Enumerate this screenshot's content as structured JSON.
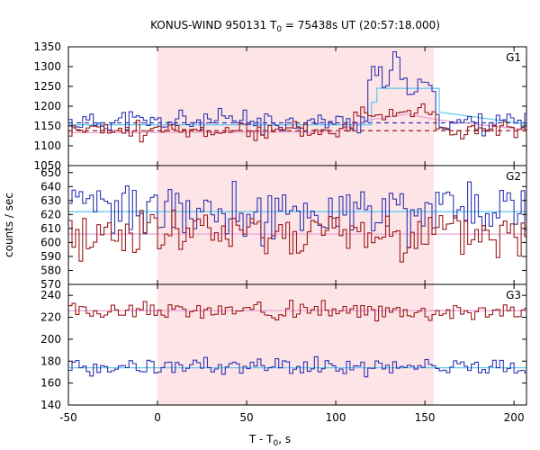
{
  "chart_data": {
    "type": "line",
    "title_main": "KONUS-WIND 950131 T",
    "title_sub": "0",
    "title_rest": " = 75438s UT (20:57:18.000)",
    "xlabel_main": "T - T",
    "xlabel_sub": "0",
    "xlabel_rest": ", s",
    "ylabel": "counts / sec",
    "xlim": [
      -50,
      207
    ],
    "x_ticks": [
      -50,
      0,
      50,
      100,
      150,
      200
    ],
    "shaded_interval": [
      0,
      155
    ],
    "colors": {
      "shade": "#fde4e6",
      "blue": "#2f35b1",
      "red": "#9b1b1b",
      "cyan": "#66ccee",
      "pink": "#e8a6d8"
    },
    "panels": [
      {
        "label": "G1",
        "ylim": [
          1050,
          1350
        ],
        "y_ticks": [
          1050,
          1100,
          1150,
          1200,
          1250,
          1300,
          1350
        ],
        "background": [
          {
            "color": "blue",
            "level": 1158
          },
          {
            "color": "red",
            "level": 1138
          }
        ],
        "fits": [
          {
            "color": "cyan",
            "points": [
              [
                -50,
                1153
              ],
              [
                120,
                1153
              ],
              [
                120,
                1210
              ],
              [
                123,
                1210
              ],
              [
                123,
                1245
              ],
              [
                145,
                1245
              ],
              [
                145,
                1245
              ],
              [
                158,
                1245
              ],
              [
                158,
                1185
              ],
              [
                207,
                1155
              ]
            ]
          },
          {
            "color": "pink",
            "points": [
              [
                -50,
                1133
              ],
              [
                100,
                1135
              ],
              [
                118,
                1165
              ],
              [
                140,
                1180
              ],
              [
                158,
                1165
              ],
              [
                207,
                1140
              ]
            ]
          }
        ],
        "series": [
          {
            "color": "blue",
            "base": 1160,
            "amp": 22,
            "peak": [
              [
                118,
                132,
                1270
              ],
              [
                132,
                136,
                1320
              ],
              [
                136,
                155,
                1250
              ]
            ],
            "seed": 11
          },
          {
            "color": "red",
            "base": 1138,
            "amp": 18,
            "peak": [
              [
                110,
                155,
                1190
              ]
            ],
            "seed": 23
          }
        ]
      },
      {
        "label": "G2",
        "ylim": [
          570,
          655
        ],
        "y_ticks": [
          570,
          580,
          590,
          600,
          610,
          620,
          630,
          640,
          650
        ],
        "fits": [
          {
            "color": "cyan",
            "points": [
              [
                -50,
                622
              ],
              [
                207,
                622
              ]
            ]
          },
          {
            "color": "pink",
            "points": [
              [
                -50,
                606
              ],
              [
                207,
                606
              ]
            ]
          }
        ],
        "series": [
          {
            "color": "blue",
            "base": 622,
            "amp": 16,
            "peak": [],
            "seed": 37
          },
          {
            "color": "red",
            "base": 606,
            "amp": 14,
            "peak": [],
            "seed": 41
          }
        ]
      },
      {
        "label": "G3",
        "ylim": [
          140,
          250
        ],
        "y_ticks": [
          140,
          160,
          180,
          200,
          220,
          240
        ],
        "fits": [
          {
            "color": "cyan",
            "points": [
              [
                -50,
                174
              ],
              [
                207,
                174
              ]
            ]
          },
          {
            "color": "pink",
            "points": [
              [
                -50,
                226
              ],
              [
                207,
                226
              ]
            ]
          }
        ],
        "series": [
          {
            "color": "blue",
            "base": 175,
            "amp": 6,
            "peak": [],
            "seed": 53
          },
          {
            "color": "red",
            "base": 226,
            "amp": 6,
            "peak": [],
            "seed": 67
          }
        ]
      }
    ]
  }
}
